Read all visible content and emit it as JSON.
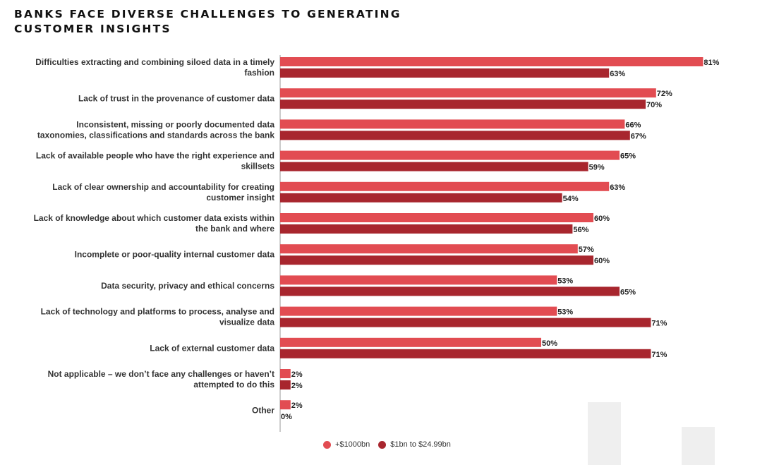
{
  "title": "BANKS FACE DIVERSE CHALLENGES TO GENERATING CUSTOMER INSIGHTS",
  "colors": {
    "series1": "#e24c52",
    "series2": "#a8262e",
    "axis": "#999999",
    "deco": "#efefef"
  },
  "legend": {
    "series1": "+$1000bn",
    "series2": "$1bn to $24.99bn"
  },
  "chart_data": {
    "type": "bar",
    "orientation": "horizontal",
    "title": "BANKS FACE DIVERSE CHALLENGES TO GENERATING CUSTOMER INSIGHTS",
    "xlim": [
      0,
      81
    ],
    "unit": "%",
    "categories": [
      [
        "Difficulties extracting and combining siloed data in a timely",
        "fashion"
      ],
      [
        "Lack of trust in the provenance of customer data"
      ],
      [
        "Inconsistent, missing or poorly documented data",
        "taxonomies, classifications and standards across the bank"
      ],
      [
        "Lack of available people who have the right experience and",
        "skillsets"
      ],
      [
        "Lack of clear ownership and accountability for creating",
        "customer insight"
      ],
      [
        "Lack of knowledge about which customer data exists within",
        "the bank and where"
      ],
      [
        "Incomplete or poor-quality internal customer data"
      ],
      [
        "Data security, privacy and ethical concerns"
      ],
      [
        "Lack of technology and platforms to process, analyse and",
        "visualize data"
      ],
      [
        "Lack of external customer data"
      ],
      [
        "Not applicable – we don’t face any challenges or haven’t",
        "attempted to do this"
      ],
      [
        "Other"
      ]
    ],
    "series": [
      {
        "name": "+$1000bn",
        "values": [
          81,
          72,
          66,
          65,
          63,
          60,
          57,
          53,
          53,
          50,
          2,
          2
        ]
      },
      {
        "name": "$1bn to $24.99bn",
        "values": [
          63,
          70,
          67,
          59,
          54,
          56,
          60,
          65,
          71,
          71,
          2,
          0
        ]
      }
    ],
    "legend_position": "bottom-center"
  }
}
